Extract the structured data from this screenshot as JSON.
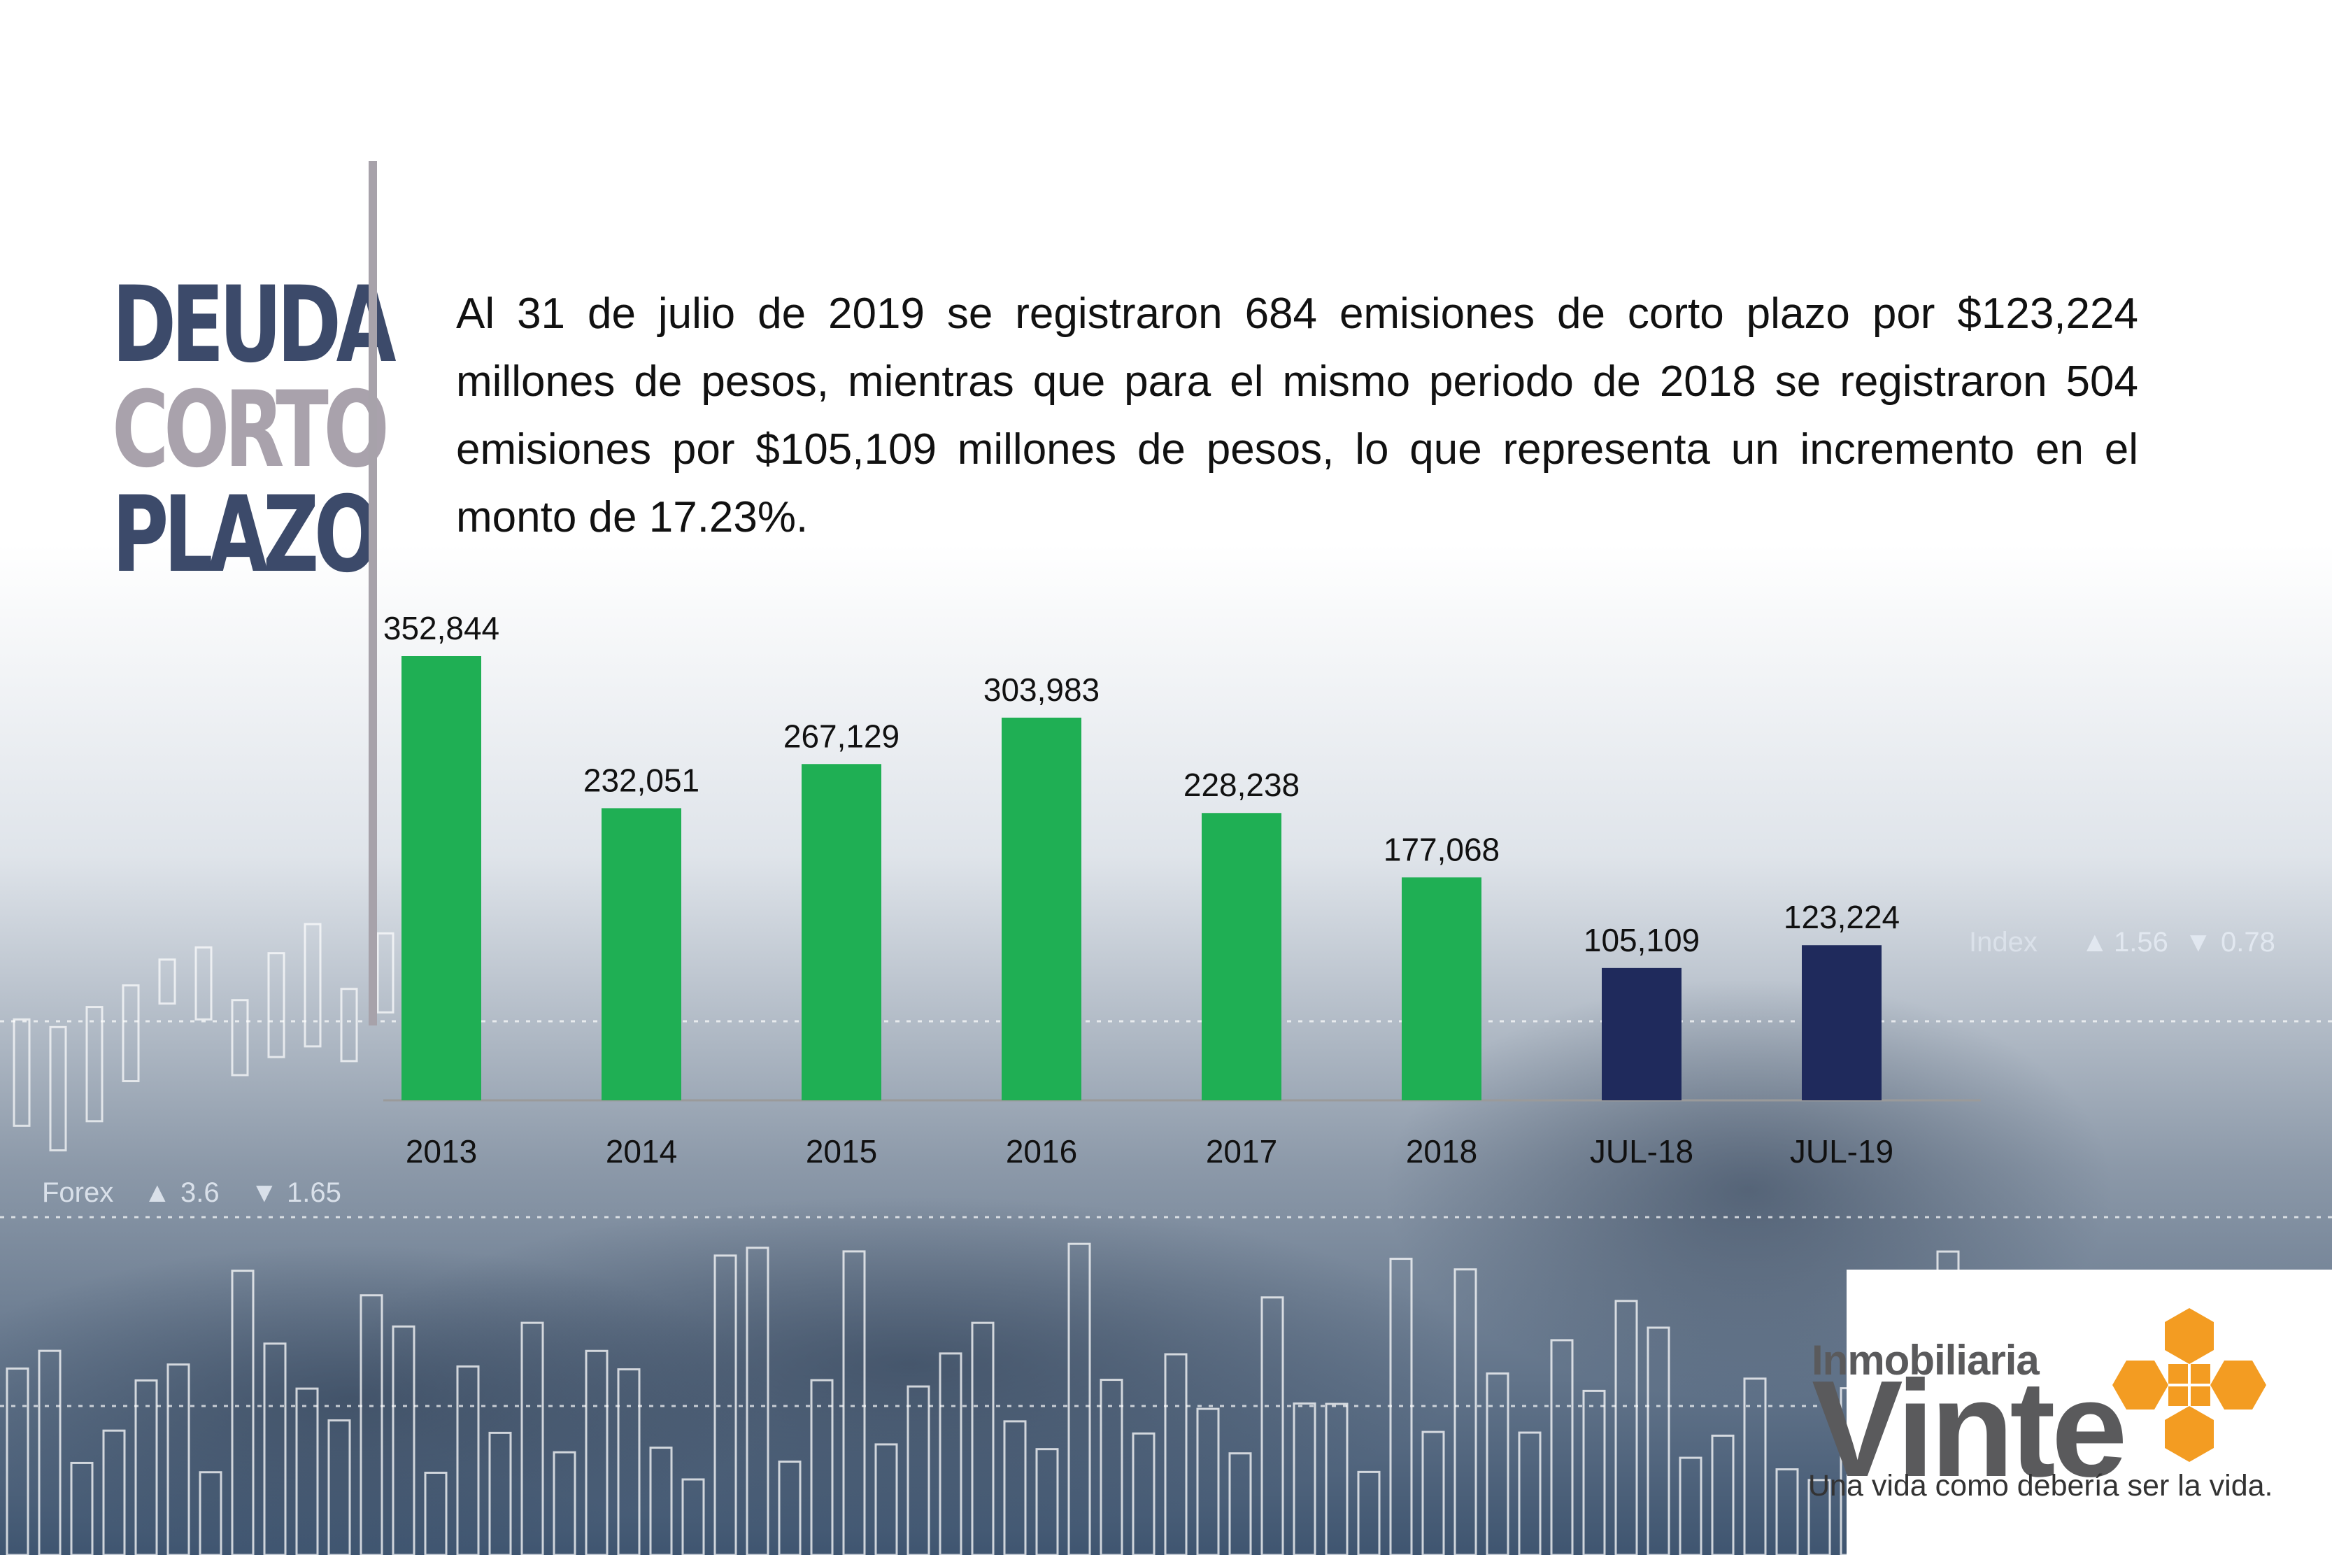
{
  "title": {
    "line1": "DEUDA",
    "line2": "CORTO",
    "line3": "PLAZO"
  },
  "description": "Al 31 de julio de 2019 se registraron 684 emisiones de corto plazo por $123,224 millones de pesos, mientras que para el mismo periodo de 2018 se registraron 504 emisiones por $105,109 millones de pesos, lo que representa un incremento en el monto de 17.23%.",
  "colors": {
    "green": "#1faf54",
    "navy": "#1f2a5c",
    "title_dark": "#3c4a6a",
    "title_light": "#a9a2ac",
    "logo_orange": "#f39c22",
    "logo_gray": "#5a5a5c"
  },
  "chart_data": {
    "type": "bar",
    "categories": [
      "2013",
      "2014",
      "2015",
      "2016",
      "2017",
      "2018",
      "JUL-18",
      "JUL-19"
    ],
    "values": [
      352844,
      232051,
      267129,
      303983,
      228238,
      177068,
      105109,
      123224
    ],
    "data_labels": [
      "352,844",
      "232,051",
      "267,129",
      "303,983",
      "228,238",
      "177,068",
      "105,109",
      "123,224"
    ],
    "bar_colors": [
      "#1faf54",
      "#1faf54",
      "#1faf54",
      "#1faf54",
      "#1faf54",
      "#1faf54",
      "#1f2a5c",
      "#1f2a5c"
    ],
    "ylim": [
      0,
      352844
    ],
    "grid": false,
    "xlabel": "",
    "ylabel": ""
  },
  "background_ticker": [
    {
      "name": "Forex",
      "up": "3.6",
      "down": "1.65"
    },
    {
      "name": "Index",
      "up": "1.56",
      "down": "0.78"
    }
  ],
  "logo": {
    "small": "Inmobiliaria",
    "big": "Vinte",
    "tagline": "Una vida como debería ser la vida.",
    "icon": "orange-cross-logo-icon"
  }
}
